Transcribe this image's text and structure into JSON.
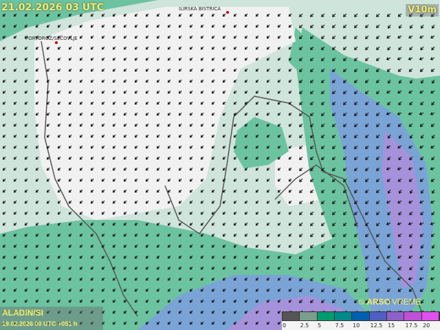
{
  "header": {
    "valid_time": "21.02.2026 03 UTC",
    "variable": "V10m"
  },
  "model": {
    "name": "ALADIN/SI",
    "run": "19.02.2026 00 UTC +051 h"
  },
  "places": [
    {
      "name": "ILIRSKA BISTRICA"
    },
    {
      "name": "PORTOROŽ/SEČOVLJE"
    }
  ],
  "brand": {
    "bold": "ARSO",
    "rest": "VREME",
    "icon": "satellite-dish-icon"
  },
  "legend": {
    "colors": [
      "#555555",
      "#7a9e8c",
      "#009b6e",
      "#008a8a",
      "#0060b0",
      "#5060c0",
      "#9060c8",
      "#c050d8",
      "#e050f0"
    ],
    "labels": [
      "0",
      "2.5",
      "5",
      "7.5",
      "10",
      "12.5",
      "15",
      "17.5",
      "20"
    ]
  },
  "field_colors": {
    "calm": "#f1f1f1",
    "light": "#cfe4db",
    "green": "#6cc3a0",
    "blue": "#7aa3d6",
    "purple": "#a692da"
  }
}
